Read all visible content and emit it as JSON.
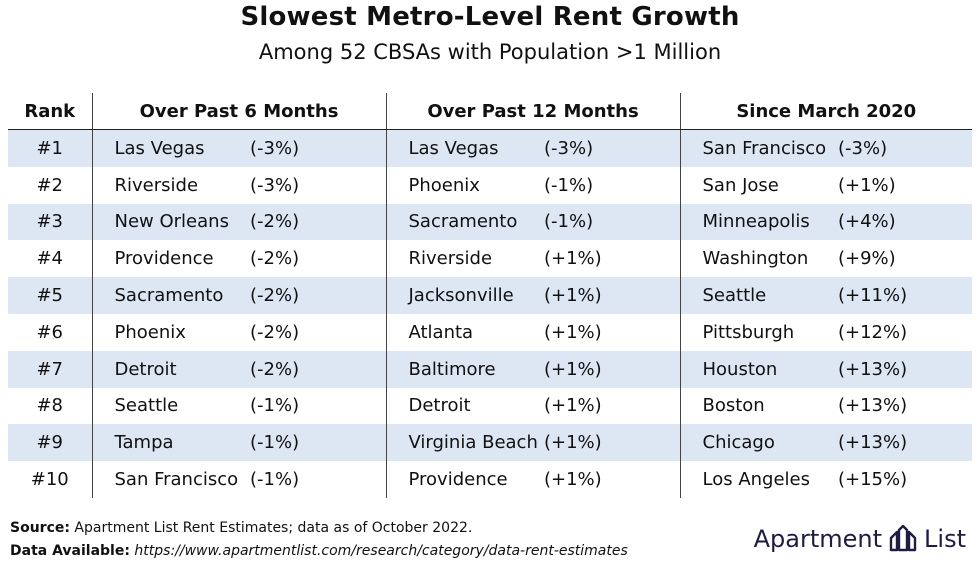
{
  "title": "Slowest Metro-Level Rent Growth",
  "subtitle": "Among 52 CBSAs with Population >1 Million",
  "headers": {
    "rank": "Rank",
    "col1": "Over Past 6 Months",
    "col2": "Over Past 12 Months",
    "col3": "Since March 2020"
  },
  "chart_data": {
    "type": "table",
    "columns": [
      "Rank",
      "Over Past 6 Months",
      "Over Past 12 Months",
      "Since March 2020"
    ],
    "rows": [
      {
        "rank": "#1",
        "m6_city": "Las Vegas",
        "m6_pct": "(-3%)",
        "m12_city": "Las Vegas",
        "m12_pct": "(-3%)",
        "mar_city": "San Francisco",
        "mar_pct": "(-3%)"
      },
      {
        "rank": "#2",
        "m6_city": "Riverside",
        "m6_pct": "(-3%)",
        "m12_city": "Phoenix",
        "m12_pct": "(-1%)",
        "mar_city": "San Jose",
        "mar_pct": "(+1%)"
      },
      {
        "rank": "#3",
        "m6_city": "New Orleans",
        "m6_pct": "(-2%)",
        "m12_city": "Sacramento",
        "m12_pct": "(-1%)",
        "mar_city": "Minneapolis",
        "mar_pct": "(+4%)"
      },
      {
        "rank": "#4",
        "m6_city": "Providence",
        "m6_pct": "(-2%)",
        "m12_city": "Riverside",
        "m12_pct": "(+1%)",
        "mar_city": "Washington",
        "mar_pct": "(+9%)"
      },
      {
        "rank": "#5",
        "m6_city": "Sacramento",
        "m6_pct": "(-2%)",
        "m12_city": "Jacksonville",
        "m12_pct": "(+1%)",
        "mar_city": "Seattle",
        "mar_pct": "(+11%)"
      },
      {
        "rank": "#6",
        "m6_city": "Phoenix",
        "m6_pct": "(-2%)",
        "m12_city": "Atlanta",
        "m12_pct": "(+1%)",
        "mar_city": "Pittsburgh",
        "mar_pct": "(+12%)"
      },
      {
        "rank": "#7",
        "m6_city": "Detroit",
        "m6_pct": "(-2%)",
        "m12_city": "Baltimore",
        "m12_pct": "(+1%)",
        "mar_city": "Houston",
        "mar_pct": "(+13%)"
      },
      {
        "rank": "#8",
        "m6_city": "Seattle",
        "m6_pct": "(-1%)",
        "m12_city": "Detroit",
        "m12_pct": "(+1%)",
        "mar_city": "Boston",
        "mar_pct": "(+13%)"
      },
      {
        "rank": "#9",
        "m6_city": "Tampa",
        "m6_pct": "(-1%)",
        "m12_city": "Virginia Beach",
        "m12_pct": "(+1%)",
        "mar_city": "Chicago",
        "mar_pct": "(+13%)"
      },
      {
        "rank": "#10",
        "m6_city": "San Francisco",
        "m6_pct": "(-1%)",
        "m12_city": "Providence",
        "m12_pct": "(+1%)",
        "mar_city": "Los Angeles",
        "mar_pct": "(+15%)"
      }
    ]
  },
  "footer": {
    "source_label": "Source:",
    "source_text": "Apartment List Rent Estimates; data as of October 2022.",
    "data_label": "Data Available:",
    "data_url": "https://www.apartmentlist.com/research/category/data-rent-estimates"
  },
  "logo": {
    "left": "Apartment",
    "right": "List",
    "color": "#1e1c44"
  },
  "colors": {
    "stripe": "#dde6f3",
    "text": "#111111"
  }
}
